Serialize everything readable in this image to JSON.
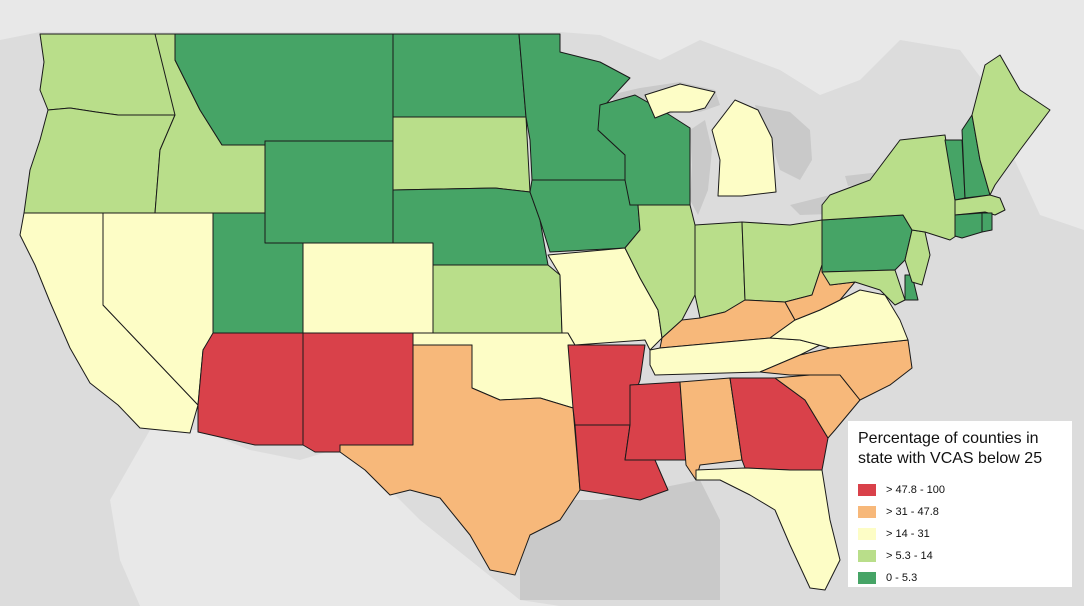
{
  "legend": {
    "title": "Percentage of counties in state with VCAS below 25",
    "items": [
      {
        "label": "> 47.8 - 100",
        "color": "#d9414a"
      },
      {
        "label": "> 31 - 47.8",
        "color": "#f7b87a"
      },
      {
        "label": "> 14 - 31",
        "color": "#fdfdc6"
      },
      {
        "label": "> 5.3 - 14",
        "color": "#b9de8a"
      },
      {
        "label": "0 - 5.3",
        "color": "#46a466"
      }
    ]
  },
  "colors": {
    "background": "#dcdcdc",
    "land": "#ececec",
    "water": "#c9c9c9",
    "class_1": "#d9414a",
    "class_2": "#f7b87a",
    "class_3": "#fdfdc6",
    "class_4": "#b9de8a",
    "class_5": "#46a466"
  },
  "states": [
    {
      "name": "Washington",
      "class": 4
    },
    {
      "name": "Oregon",
      "class": 4
    },
    {
      "name": "California",
      "class": 3
    },
    {
      "name": "Nevada",
      "class": 3
    },
    {
      "name": "Idaho",
      "class": 4
    },
    {
      "name": "Montana",
      "class": 5
    },
    {
      "name": "Wyoming",
      "class": 5
    },
    {
      "name": "Utah",
      "class": 5
    },
    {
      "name": "Arizona",
      "class": 1
    },
    {
      "name": "Colorado",
      "class": 3
    },
    {
      "name": "New Mexico",
      "class": 1
    },
    {
      "name": "North Dakota",
      "class": 5
    },
    {
      "name": "South Dakota",
      "class": 4
    },
    {
      "name": "Nebraska",
      "class": 5
    },
    {
      "name": "Kansas",
      "class": 4
    },
    {
      "name": "Oklahoma",
      "class": 3
    },
    {
      "name": "Texas",
      "class": 2
    },
    {
      "name": "Minnesota",
      "class": 5
    },
    {
      "name": "Iowa",
      "class": 5
    },
    {
      "name": "Missouri",
      "class": 3
    },
    {
      "name": "Arkansas",
      "class": 1
    },
    {
      "name": "Louisiana",
      "class": 1
    },
    {
      "name": "Wisconsin",
      "class": 5
    },
    {
      "name": "Illinois",
      "class": 4
    },
    {
      "name": "Michigan",
      "class": 3
    },
    {
      "name": "Indiana",
      "class": 4
    },
    {
      "name": "Ohio",
      "class": 4
    },
    {
      "name": "Kentucky",
      "class": 2
    },
    {
      "name": "Tennessee",
      "class": 3
    },
    {
      "name": "Mississippi",
      "class": 1
    },
    {
      "name": "Alabama",
      "class": 2
    },
    {
      "name": "Georgia",
      "class": 1
    },
    {
      "name": "Florida",
      "class": 3
    },
    {
      "name": "South Carolina",
      "class": 2
    },
    {
      "name": "North Carolina",
      "class": 2
    },
    {
      "name": "Virginia",
      "class": 3
    },
    {
      "name": "West Virginia",
      "class": 2
    },
    {
      "name": "Pennsylvania",
      "class": 5
    },
    {
      "name": "New York",
      "class": 4
    },
    {
      "name": "New Jersey",
      "class": 4
    },
    {
      "name": "Maryland",
      "class": 4
    },
    {
      "name": "Delaware",
      "class": 5
    },
    {
      "name": "Vermont",
      "class": 5
    },
    {
      "name": "New Hampshire",
      "class": 5
    },
    {
      "name": "Maine",
      "class": 4
    },
    {
      "name": "Massachusetts",
      "class": 4
    },
    {
      "name": "Connecticut",
      "class": 5
    },
    {
      "name": "Rhode Island",
      "class": 5
    }
  ]
}
